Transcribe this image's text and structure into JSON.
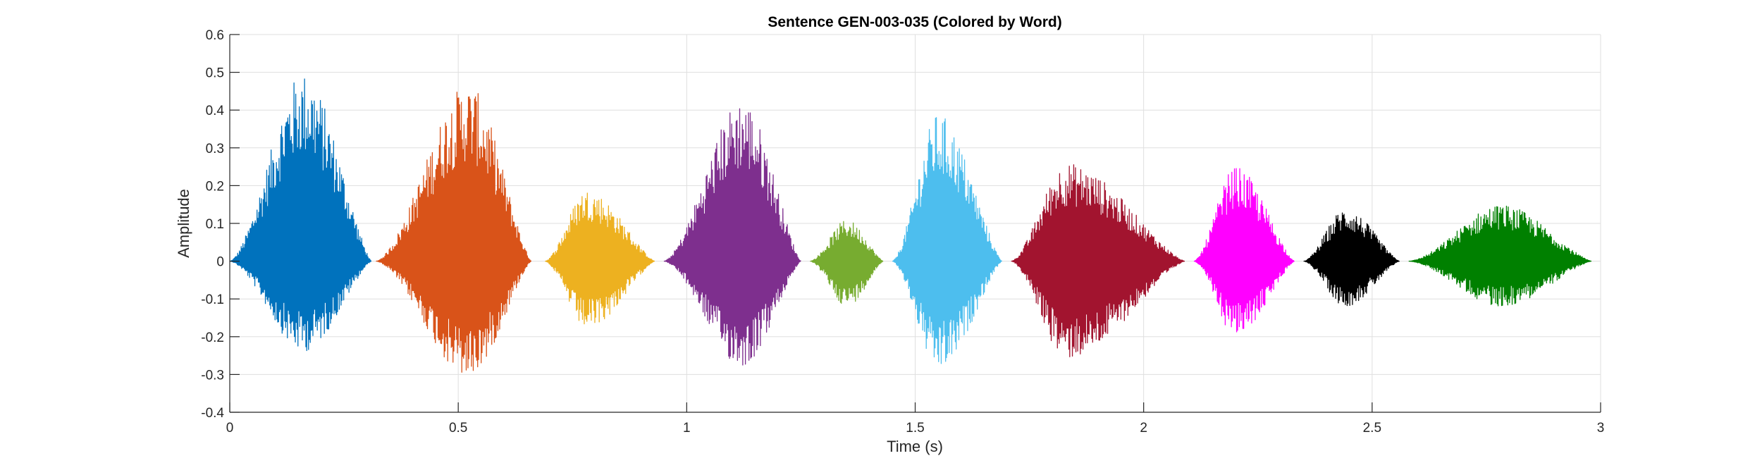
{
  "chart_data": {
    "type": "line",
    "title": "Sentence GEN-003-035 (Colored by Word)",
    "xlabel": "Time (s)",
    "ylabel": "Amplitude",
    "xlim": [
      0,
      3
    ],
    "ylim": [
      -0.4,
      0.6
    ],
    "x_ticks": [
      0,
      0.5,
      1,
      1.5,
      2,
      2.5,
      3
    ],
    "x_tick_labels": [
      "0",
      "0.5",
      "1",
      "1.5",
      "2",
      "2.5",
      "3"
    ],
    "y_ticks": [
      -0.4,
      -0.3,
      -0.2,
      -0.1,
      0,
      0.1,
      0.2,
      0.3,
      0.4,
      0.5,
      0.6
    ],
    "y_tick_labels": [
      "-0.4",
      "-0.3",
      "-0.2",
      "-0.1",
      "0",
      "0.1",
      "0.2",
      "0.3",
      "0.4",
      "0.5",
      "0.6"
    ],
    "grid": true,
    "legend": "none",
    "segments": [
      {
        "start": 0.0,
        "end": 0.31,
        "color": "#0072BD",
        "peak_time": 0.16,
        "max_amp": 0.5,
        "min_amp": -0.24
      },
      {
        "start": 0.32,
        "end": 0.66,
        "color": "#D95319",
        "peak_time": 0.52,
        "max_amp": 0.47,
        "min_amp": -0.31
      },
      {
        "start": 0.69,
        "end": 0.93,
        "color": "#EDB120",
        "peak_time": 0.78,
        "max_amp": 0.19,
        "min_amp": -0.18
      },
      {
        "start": 0.95,
        "end": 1.25,
        "color": "#7E2F8E",
        "peak_time": 1.12,
        "max_amp": 0.43,
        "min_amp": -0.28
      },
      {
        "start": 1.27,
        "end": 1.43,
        "color": "#77AC30",
        "peak_time": 1.35,
        "max_amp": 0.11,
        "min_amp": -0.12
      },
      {
        "start": 1.45,
        "end": 1.69,
        "color": "#4DBEEE",
        "peak_time": 1.55,
        "max_amp": 0.39,
        "min_amp": -0.29
      },
      {
        "start": 1.71,
        "end": 2.09,
        "color": "#A2142F",
        "peak_time": 1.83,
        "max_amp": 0.26,
        "min_amp": -0.26
      },
      {
        "start": 2.11,
        "end": 2.33,
        "color": "#FF00FF",
        "peak_time": 2.2,
        "max_amp": 0.25,
        "min_amp": -0.2
      },
      {
        "start": 2.35,
        "end": 2.56,
        "color": "#000000",
        "peak_time": 2.44,
        "max_amp": 0.14,
        "min_amp": -0.12
      },
      {
        "start": 2.58,
        "end": 2.98,
        "color": "#008000",
        "peak_time": 2.78,
        "max_amp": 0.15,
        "min_amp": -0.12
      }
    ]
  }
}
